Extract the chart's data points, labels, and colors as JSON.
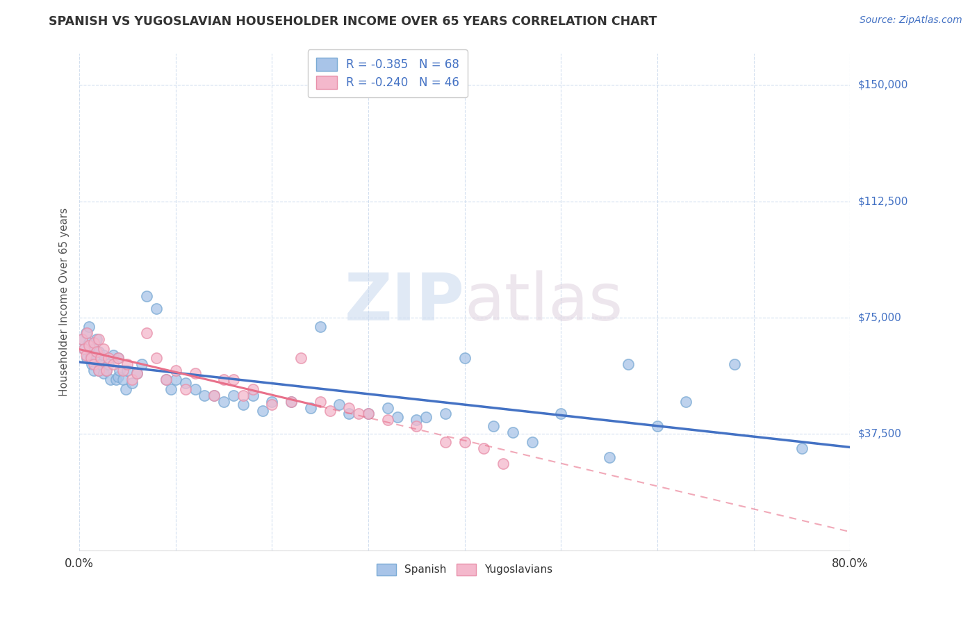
{
  "title": "SPANISH VS YUGOSLAVIAN HOUSEHOLDER INCOME OVER 65 YEARS CORRELATION CHART",
  "source": "Source: ZipAtlas.com",
  "ylabel": "Householder Income Over 65 years",
  "xlim": [
    0.0,
    80.0
  ],
  "ylim": [
    0,
    160000
  ],
  "yticks": [
    0,
    37500,
    75000,
    112500,
    150000
  ],
  "ytick_labels": [
    "",
    "$37,500",
    "$75,000",
    "$112,500",
    "$150,000"
  ],
  "xticks": [
    0,
    10,
    20,
    30,
    40,
    50,
    60,
    70,
    80
  ],
  "spanish_R": -0.385,
  "spanish_N": 68,
  "yugoslavian_R": -0.24,
  "yugoslavian_N": 46,
  "spanish_color": "#a8c4e8",
  "spanish_edge_color": "#7aaad4",
  "yugoslavian_color": "#f4b8cc",
  "yugoslavian_edge_color": "#e890aa",
  "spanish_line_color": "#4472c4",
  "yugoslavian_line_color": "#e8708a",
  "watermark_zip": "ZIP",
  "watermark_atlas": "atlas",
  "spanish_x": [
    0.3,
    0.5,
    0.7,
    0.8,
    1.0,
    1.0,
    1.2,
    1.3,
    1.5,
    1.5,
    1.8,
    1.8,
    2.0,
    2.0,
    2.2,
    2.5,
    2.5,
    2.8,
    3.0,
    3.2,
    3.5,
    3.8,
    4.0,
    4.0,
    4.2,
    4.5,
    4.8,
    5.0,
    5.5,
    6.0,
    6.5,
    7.0,
    8.0,
    9.0,
    9.5,
    10.0,
    11.0,
    12.0,
    13.0,
    14.0,
    15.0,
    16.0,
    17.0,
    18.0,
    19.0,
    20.0,
    22.0,
    24.0,
    25.0,
    27.0,
    28.0,
    30.0,
    32.0,
    33.0,
    35.0,
    36.0,
    38.0,
    40.0,
    43.0,
    45.0,
    47.0,
    50.0,
    55.0,
    57.0,
    60.0,
    63.0,
    68.0,
    75.0
  ],
  "spanish_y": [
    68000,
    65000,
    70000,
    62000,
    72000,
    67000,
    63000,
    60000,
    65000,
    58000,
    68000,
    62000,
    64000,
    58000,
    60000,
    63000,
    57000,
    58000,
    60000,
    55000,
    63000,
    55000,
    62000,
    56000,
    58000,
    55000,
    52000,
    58000,
    54000,
    57000,
    60000,
    82000,
    78000,
    55000,
    52000,
    55000,
    54000,
    52000,
    50000,
    50000,
    48000,
    50000,
    47000,
    50000,
    45000,
    48000,
    48000,
    46000,
    72000,
    47000,
    44000,
    44000,
    46000,
    43000,
    42000,
    43000,
    44000,
    62000,
    40000,
    38000,
    35000,
    44000,
    30000,
    60000,
    40000,
    48000,
    60000,
    33000
  ],
  "yugoslavian_x": [
    0.3,
    0.5,
    0.7,
    0.8,
    1.0,
    1.2,
    1.5,
    1.5,
    1.8,
    2.0,
    2.0,
    2.2,
    2.5,
    2.8,
    3.0,
    3.5,
    4.0,
    4.5,
    5.0,
    5.5,
    6.0,
    7.0,
    8.0,
    9.0,
    10.0,
    11.0,
    12.0,
    14.0,
    15.0,
    16.0,
    17.0,
    18.0,
    20.0,
    22.0,
    23.0,
    25.0,
    26.0,
    28.0,
    29.0,
    30.0,
    32.0,
    35.0,
    38.0,
    40.0,
    42.0,
    44.0
  ],
  "yugoslavian_y": [
    68000,
    65000,
    63000,
    70000,
    66000,
    62000,
    67000,
    60000,
    64000,
    68000,
    58000,
    62000,
    65000,
    58000,
    62000,
    60000,
    62000,
    58000,
    60000,
    55000,
    57000,
    70000,
    62000,
    55000,
    58000,
    52000,
    57000,
    50000,
    55000,
    55000,
    50000,
    52000,
    47000,
    48000,
    62000,
    48000,
    45000,
    46000,
    44000,
    44000,
    42000,
    40000,
    35000,
    35000,
    33000,
    28000
  ]
}
